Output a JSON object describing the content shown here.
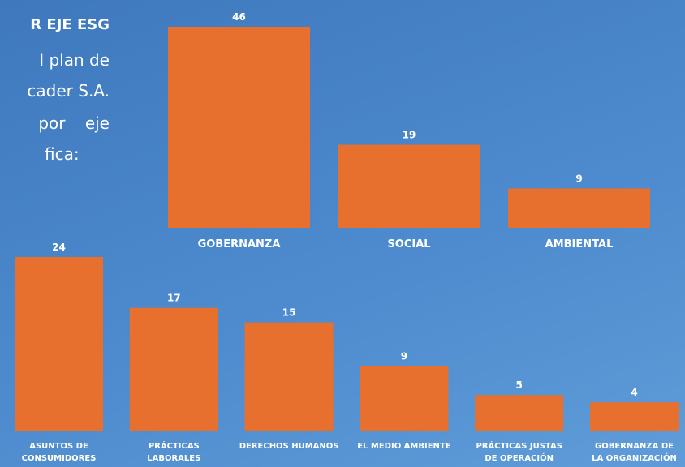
{
  "text": {
    "heading": "R EJE ESG",
    "lines": [
      "l plan de",
      "cader S.A.",
      "por eje",
      "fica:"
    ]
  },
  "chart_data": [
    {
      "type": "bar",
      "categories": [
        "GOBERNANZA",
        "SOCIAL",
        "AMBIENTAL"
      ],
      "values": [
        46,
        19,
        9
      ],
      "color": "#e8702f"
    },
    {
      "type": "bar",
      "categories": [
        "ASUNTOS DE CONSUMIDORES",
        "PRÁCTICAS LABORALES",
        "DERECHOS HUMANOS",
        "EL MEDIO AMBIENTE",
        "PRÁCTICAS JUSTAS DE OPERACIÓN",
        "GOBERNANZA DE LA ORGANIZACIÓN"
      ],
      "values": [
        24,
        17,
        15,
        9,
        5,
        4
      ],
      "color": "#e8702f"
    }
  ]
}
